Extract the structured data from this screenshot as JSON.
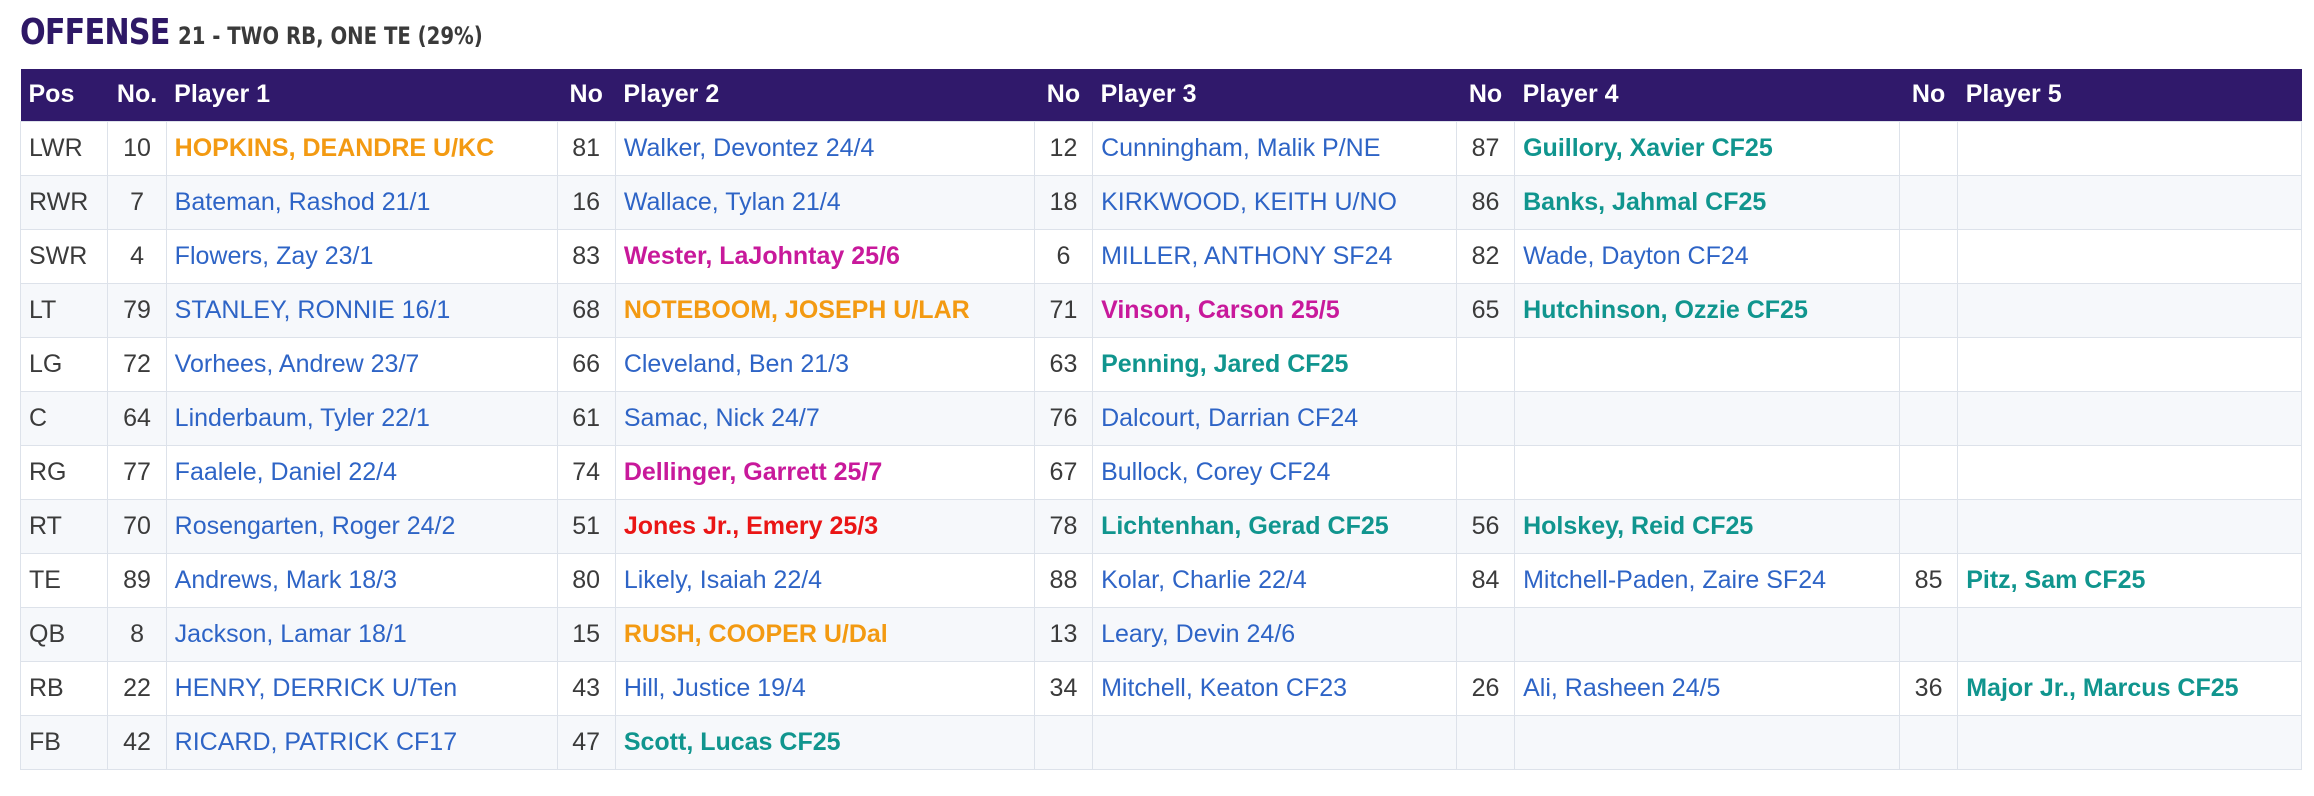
{
  "section": {
    "title": "OFFENSE",
    "subtitle": "21 - TWO RB, ONE TE (29%)"
  },
  "table": {
    "headers": {
      "pos": "Pos",
      "no1": "No.",
      "player1": "Player 1",
      "no2": "No",
      "player2": "Player 2",
      "no3": "No",
      "player3": "Player 3",
      "no4": "No",
      "player4": "Player 4",
      "no5": "No",
      "player5": "Player 5"
    },
    "status_colors": {
      "blue": "#2e64c6",
      "orange": "#f39a12",
      "magenta": "#c8199b",
      "teal": "#10958e",
      "red": "#ea1515"
    },
    "rows": [
      {
        "pos": "LWR",
        "players": [
          {
            "no": "10",
            "name": "HOPKINS, DEANDRE U/KC",
            "color": "orange"
          },
          {
            "no": "81",
            "name": "Walker, Devontez 24/4",
            "color": "blue"
          },
          {
            "no": "12",
            "name": "Cunningham, Malik P/NE",
            "color": "blue"
          },
          {
            "no": "87",
            "name": "Guillory, Xavier CF25",
            "color": "teal"
          },
          {
            "no": "",
            "name": "",
            "color": "blue"
          }
        ]
      },
      {
        "pos": "RWR",
        "players": [
          {
            "no": "7",
            "name": "Bateman, Rashod 21/1",
            "color": "blue"
          },
          {
            "no": "16",
            "name": "Wallace, Tylan 21/4",
            "color": "blue"
          },
          {
            "no": "18",
            "name": "KIRKWOOD, KEITH U/NO",
            "color": "blue"
          },
          {
            "no": "86",
            "name": "Banks, Jahmal CF25",
            "color": "teal"
          },
          {
            "no": "",
            "name": "",
            "color": "blue"
          }
        ]
      },
      {
        "pos": "SWR",
        "players": [
          {
            "no": "4",
            "name": "Flowers, Zay 23/1",
            "color": "blue"
          },
          {
            "no": "83",
            "name": "Wester, LaJohntay 25/6",
            "color": "magenta"
          },
          {
            "no": "6",
            "name": "MILLER, ANTHONY SF24",
            "color": "blue"
          },
          {
            "no": "82",
            "name": "Wade, Dayton CF24",
            "color": "blue"
          },
          {
            "no": "",
            "name": "",
            "color": "blue"
          }
        ]
      },
      {
        "pos": "LT",
        "players": [
          {
            "no": "79",
            "name": "STANLEY, RONNIE 16/1",
            "color": "blue"
          },
          {
            "no": "68",
            "name": "NOTEBOOM, JOSEPH U/LAR",
            "color": "orange"
          },
          {
            "no": "71",
            "name": "Vinson, Carson 25/5",
            "color": "magenta"
          },
          {
            "no": "65",
            "name": "Hutchinson, Ozzie CF25",
            "color": "teal"
          },
          {
            "no": "",
            "name": "",
            "color": "blue"
          }
        ]
      },
      {
        "pos": "LG",
        "players": [
          {
            "no": "72",
            "name": "Vorhees, Andrew 23/7",
            "color": "blue"
          },
          {
            "no": "66",
            "name": "Cleveland, Ben 21/3",
            "color": "blue"
          },
          {
            "no": "63",
            "name": "Penning, Jared CF25",
            "color": "teal"
          },
          {
            "no": "",
            "name": "",
            "color": "blue"
          },
          {
            "no": "",
            "name": "",
            "color": "blue"
          }
        ]
      },
      {
        "pos": "C",
        "players": [
          {
            "no": "64",
            "name": "Linderbaum, Tyler 22/1",
            "color": "blue"
          },
          {
            "no": "61",
            "name": "Samac, Nick 24/7",
            "color": "blue"
          },
          {
            "no": "76",
            "name": "Dalcourt, Darrian CF24",
            "color": "blue"
          },
          {
            "no": "",
            "name": "",
            "color": "blue"
          },
          {
            "no": "",
            "name": "",
            "color": "blue"
          }
        ]
      },
      {
        "pos": "RG",
        "players": [
          {
            "no": "77",
            "name": "Faalele, Daniel 22/4",
            "color": "blue"
          },
          {
            "no": "74",
            "name": "Dellinger, Garrett 25/7",
            "color": "magenta"
          },
          {
            "no": "67",
            "name": "Bullock, Corey CF24",
            "color": "blue"
          },
          {
            "no": "",
            "name": "",
            "color": "blue"
          },
          {
            "no": "",
            "name": "",
            "color": "blue"
          }
        ]
      },
      {
        "pos": "RT",
        "players": [
          {
            "no": "70",
            "name": "Rosengarten, Roger 24/2",
            "color": "blue"
          },
          {
            "no": "51",
            "name": "Jones Jr., Emery 25/3",
            "color": "red"
          },
          {
            "no": "78",
            "name": "Lichtenhan, Gerad CF25",
            "color": "teal"
          },
          {
            "no": "56",
            "name": "Holskey, Reid CF25",
            "color": "teal"
          },
          {
            "no": "",
            "name": "",
            "color": "blue"
          }
        ]
      },
      {
        "pos": "TE",
        "players": [
          {
            "no": "89",
            "name": "Andrews, Mark 18/3",
            "color": "blue"
          },
          {
            "no": "80",
            "name": "Likely, Isaiah 22/4",
            "color": "blue"
          },
          {
            "no": "88",
            "name": "Kolar, Charlie 22/4",
            "color": "blue"
          },
          {
            "no": "84",
            "name": "Mitchell-Paden, Zaire SF24",
            "color": "blue"
          },
          {
            "no": "85",
            "name": "Pitz, Sam CF25",
            "color": "teal"
          }
        ]
      },
      {
        "pos": "QB",
        "players": [
          {
            "no": "8",
            "name": "Jackson, Lamar 18/1",
            "color": "blue"
          },
          {
            "no": "15",
            "name": "RUSH, COOPER U/Dal",
            "color": "orange"
          },
          {
            "no": "13",
            "name": "Leary, Devin 24/6",
            "color": "blue"
          },
          {
            "no": "",
            "name": "",
            "color": "blue"
          },
          {
            "no": "",
            "name": "",
            "color": "blue"
          }
        ]
      },
      {
        "pos": "RB",
        "players": [
          {
            "no": "22",
            "name": "HENRY, DERRICK U/Ten",
            "color": "blue"
          },
          {
            "no": "43",
            "name": "Hill, Justice 19/4",
            "color": "blue"
          },
          {
            "no": "34",
            "name": "Mitchell, Keaton CF23",
            "color": "blue"
          },
          {
            "no": "26",
            "name": "Ali, Rasheen 24/5",
            "color": "blue"
          },
          {
            "no": "36",
            "name": "Major Jr., Marcus CF25",
            "color": "teal"
          }
        ]
      },
      {
        "pos": "FB",
        "players": [
          {
            "no": "42",
            "name": "RICARD, PATRICK CF17",
            "color": "blue"
          },
          {
            "no": "47",
            "name": "Scott, Lucas CF25",
            "color": "teal"
          },
          {
            "no": "",
            "name": "",
            "color": "blue"
          },
          {
            "no": "",
            "name": "",
            "color": "blue"
          },
          {
            "no": "",
            "name": "",
            "color": "blue"
          }
        ]
      }
    ]
  }
}
